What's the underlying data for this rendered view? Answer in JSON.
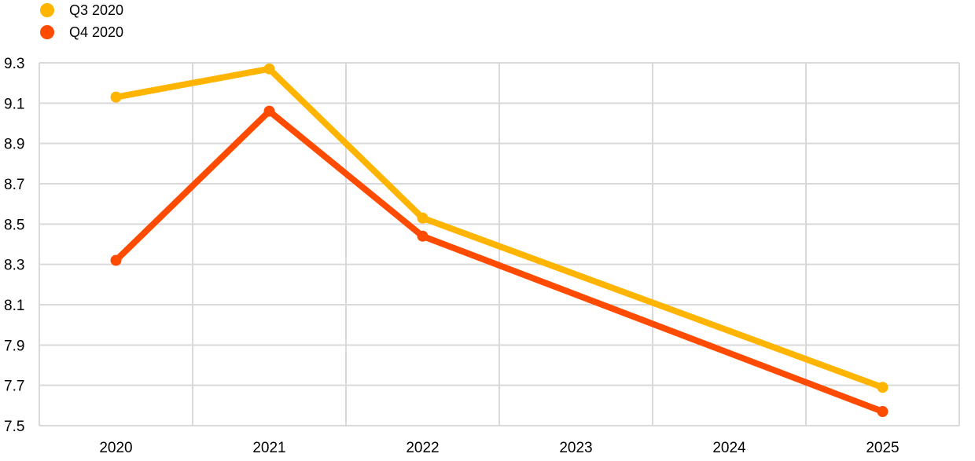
{
  "chart_data": {
    "type": "line",
    "x": [
      "2020",
      "2021",
      "2022",
      "2023",
      "2024",
      "2025"
    ],
    "series": [
      {
        "name": "Q3 2020",
        "color": "#ffb400",
        "points": [
          {
            "x": "2020",
            "y": 9.13
          },
          {
            "x": "2021",
            "y": 9.27
          },
          {
            "x": "2022",
            "y": 8.53
          },
          {
            "x": "2025",
            "y": 7.69
          }
        ]
      },
      {
        "name": "Q4 2020",
        "color": "#ff4b00",
        "points": [
          {
            "x": "2020",
            "y": 8.32
          },
          {
            "x": "2021",
            "y": 9.06
          },
          {
            "x": "2022",
            "y": 8.44
          },
          {
            "x": "2025",
            "y": 7.57
          }
        ]
      }
    ],
    "ylim": [
      7.5,
      9.3
    ],
    "yticks": [
      "7.5",
      "7.7",
      "7.9",
      "8.1",
      "8.3",
      "8.5",
      "8.7",
      "8.9",
      "9.1",
      "9.3"
    ],
    "grid": true,
    "legend_position": "top-left"
  }
}
